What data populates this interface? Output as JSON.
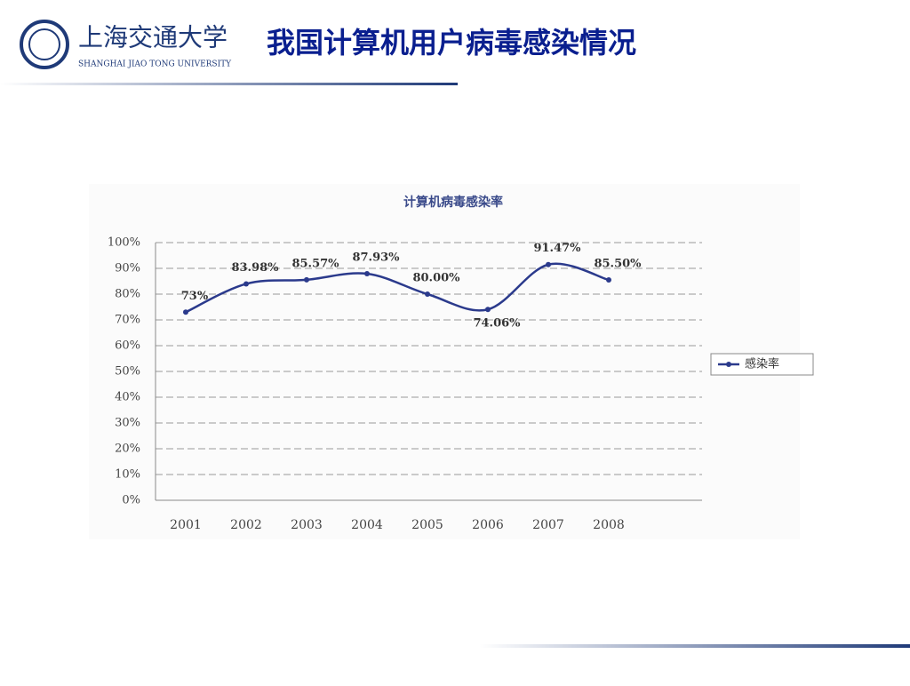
{
  "header": {
    "logo_cn": "上海交通大学",
    "logo_en": "SHANGHAI JIAO TONG UNIVERSITY",
    "title": "我国计算机用户病毒感染情况"
  },
  "chart_data": {
    "type": "line",
    "title": "计算机病毒感染率",
    "categories": [
      "2001",
      "2002",
      "2003",
      "2004",
      "2005",
      "2006",
      "2007",
      "2008"
    ],
    "series": [
      {
        "name": "感染率",
        "color": "#2b3a8c",
        "values": [
          73,
          83.98,
          85.57,
          87.93,
          80.0,
          74.06,
          91.47,
          85.5
        ],
        "value_labels": [
          "73%",
          "83.98%",
          "85.57%",
          "87.93%",
          "80.00%",
          "74.06%",
          "91.47%",
          "85.50%"
        ]
      }
    ],
    "ylim": [
      0,
      100
    ],
    "yticks": [
      {
        "value": 0,
        "label": "0%"
      },
      {
        "value": 10,
        "label": "10%"
      },
      {
        "value": 20,
        "label": "20%"
      },
      {
        "value": 30,
        "label": "30%"
      },
      {
        "value": 40,
        "label": "40%"
      },
      {
        "value": 50,
        "label": "50%"
      },
      {
        "value": 60,
        "label": "60%"
      },
      {
        "value": 70,
        "label": "70%"
      },
      {
        "value": 80,
        "label": "80%"
      },
      {
        "value": 90,
        "label": "90%"
      },
      {
        "value": 100,
        "label": "100%"
      }
    ],
    "grid": true,
    "legend": "right"
  }
}
